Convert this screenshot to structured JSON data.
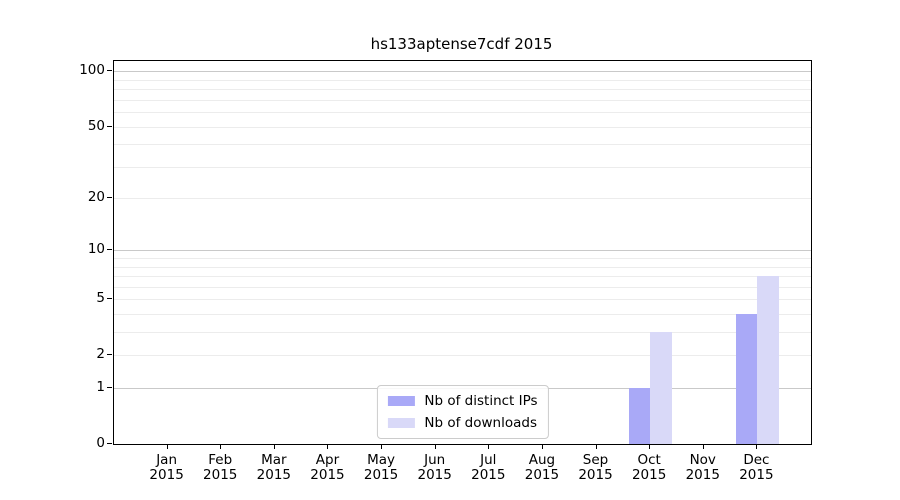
{
  "chart_data": {
    "type": "bar",
    "title": "hs133aptense7cdf 2015",
    "x_year_label": "2015",
    "categories": [
      "Jan",
      "Feb",
      "Mar",
      "Apr",
      "May",
      "Jun",
      "Jul",
      "Aug",
      "Sep",
      "Oct",
      "Nov",
      "Dec"
    ],
    "series": [
      {
        "name": "Nb of distinct IPs",
        "color": "#a9a9f7",
        "values": [
          0,
          0,
          0,
          0,
          0,
          0,
          0,
          0,
          0,
          1,
          0,
          4
        ]
      },
      {
        "name": "Nb of downloads",
        "color": "#d9d9f8",
        "values": [
          0,
          0,
          0,
          0,
          0,
          0,
          0,
          0,
          0,
          3,
          0,
          7
        ]
      }
    ],
    "yscale": "log1p",
    "yticks": [
      0,
      1,
      2,
      5,
      10,
      20,
      50,
      100
    ],
    "ylim": [
      0,
      114
    ],
    "grid": {
      "major_values": [
        1,
        10,
        100
      ],
      "minor_values": [
        2,
        3,
        4,
        5,
        6,
        7,
        8,
        9,
        20,
        30,
        40,
        50,
        60,
        70,
        80,
        90
      ],
      "major_color": "#c9c9c9",
      "minor_color": "#ececec"
    },
    "legend": {
      "position": "lower center",
      "entries": [
        "Nb of distinct IPs",
        "Nb of downloads"
      ]
    }
  }
}
